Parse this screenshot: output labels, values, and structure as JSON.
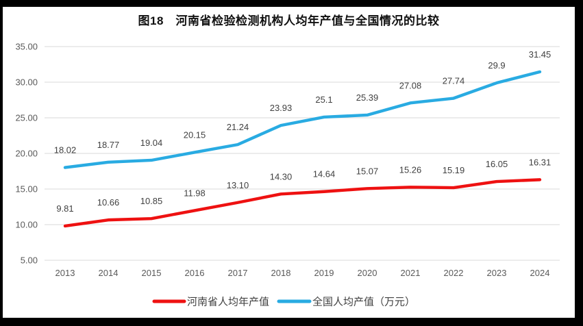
{
  "figure": {
    "title": "图18　河南省检验检测机构人均年产值与全国情况的比较"
  },
  "colors": {
    "frame": "#000000",
    "background": "#ffffff",
    "grid": "#d9d9d9",
    "axis_text": "#595959",
    "data_label_text": "#404040",
    "henan_red": "#ee1111",
    "national_blue": "#29abe2"
  },
  "chart_data": {
    "type": "line",
    "title": "图18　河南省检验检测机构人均年产值与全国情况的比较",
    "xlabel": "",
    "ylabel": "",
    "ylim": [
      5,
      35
    ],
    "y_ticks": [
      "5.00",
      "10.00",
      "15.00",
      "20.00",
      "25.00",
      "30.00",
      "35.00"
    ],
    "grid": "horizontal",
    "legend_position": "bottom",
    "categories": [
      "2013",
      "2014",
      "2015",
      "2016",
      "2017",
      "2018",
      "2019",
      "2020",
      "2021",
      "2022",
      "2023",
      "2024"
    ],
    "series": [
      {
        "name": "河南省人均年产值",
        "key": "henan",
        "color": "#ee1111",
        "values": [
          9.81,
          10.66,
          10.85,
          11.98,
          13.1,
          14.3,
          14.64,
          15.07,
          15.26,
          15.19,
          16.05,
          16.31
        ],
        "labels": [
          "9.81",
          "10.66",
          "10.85",
          "11.98",
          "13.10",
          "14.30",
          "14.64",
          "15.07",
          "15.26",
          "15.19",
          "16.05",
          "16.31"
        ]
      },
      {
        "name": "全国人均产值（万元）",
        "key": "national",
        "color": "#29abe2",
        "values": [
          18.02,
          18.77,
          19.04,
          20.15,
          21.24,
          23.93,
          25.1,
          25.39,
          27.08,
          27.74,
          29.9,
          31.45
        ],
        "labels": [
          "18.02",
          "18.77",
          "19.04",
          "20.15",
          "21.24",
          "23.93",
          "25.1",
          "25.39",
          "27.08",
          "27.74",
          "29.9",
          "31.45"
        ]
      }
    ]
  }
}
